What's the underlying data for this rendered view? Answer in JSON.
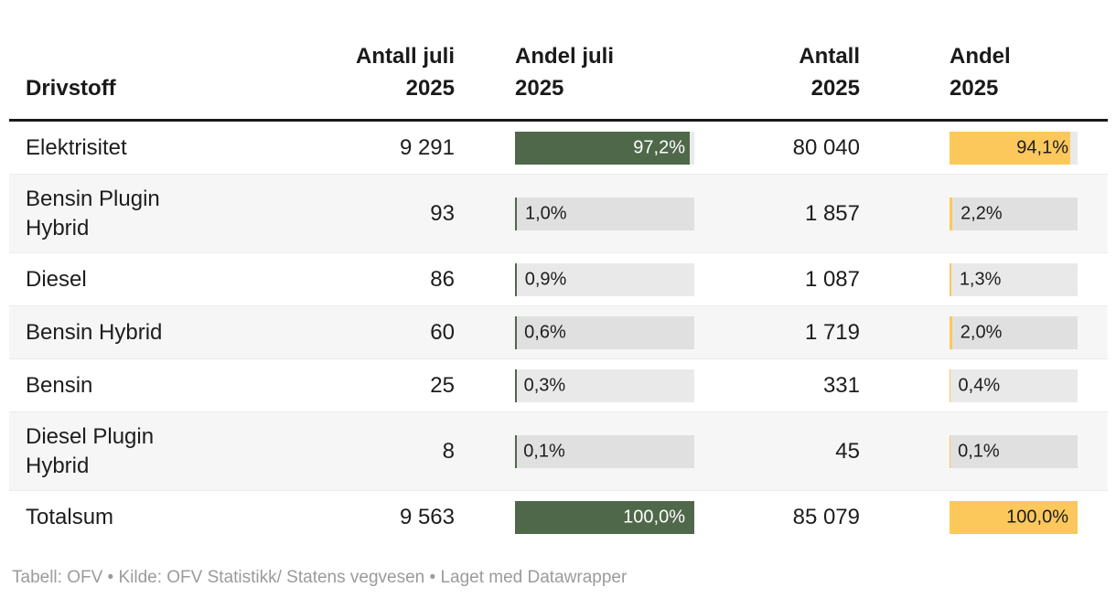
{
  "table": {
    "columns": [
      {
        "label": "Drivstoff"
      },
      {
        "label": "Antall juli\n2025"
      },
      {
        "label": "Andel juli\n2025"
      },
      {
        "label": "Antall\n2025"
      },
      {
        "label": "Andel\n2025"
      }
    ],
    "rows": [
      {
        "label": "Elektrisitet",
        "antall_juli": "9 291",
        "andel_juli": {
          "pct": 97.2,
          "label": "97,2%",
          "inside": true
        },
        "antall_2025": "80 040",
        "andel_2025": {
          "pct": 94.1,
          "label": "94,1%",
          "inside": true
        }
      },
      {
        "label": "Bensin Plugin Hybrid",
        "antall_juli": "93",
        "andel_juli": {
          "pct": 1.0,
          "label": "1,0%",
          "inside": false
        },
        "antall_2025": "1 857",
        "andel_2025": {
          "pct": 2.2,
          "label": "2,2%",
          "inside": false
        }
      },
      {
        "label": "Diesel",
        "antall_juli": "86",
        "andel_juli": {
          "pct": 0.9,
          "label": "0,9%",
          "inside": false
        },
        "antall_2025": "1 087",
        "andel_2025": {
          "pct": 1.3,
          "label": "1,3%",
          "inside": false
        }
      },
      {
        "label": "Bensin Hybrid",
        "antall_juli": "60",
        "andel_juli": {
          "pct": 0.6,
          "label": "0,6%",
          "inside": false
        },
        "antall_2025": "1 719",
        "andel_2025": {
          "pct": 2.0,
          "label": "2,0%",
          "inside": false
        }
      },
      {
        "label": "Bensin",
        "antall_juli": "25",
        "andel_juli": {
          "pct": 0.3,
          "label": "0,3%",
          "inside": false
        },
        "antall_2025": "331",
        "andel_2025": {
          "pct": 0.4,
          "label": "0,4%",
          "inside": false
        }
      },
      {
        "label": "Diesel Plugin Hybrid",
        "antall_juli": "8",
        "andel_juli": {
          "pct": 0.1,
          "label": "0,1%",
          "inside": false
        },
        "antall_2025": "45",
        "andel_2025": {
          "pct": 0.1,
          "label": "0,1%",
          "inside": false
        }
      },
      {
        "label": "Totalsum",
        "antall_juli": "9 563",
        "andel_juli": {
          "pct": 100.0,
          "label": "100,0%",
          "inside": true
        },
        "antall_2025": "85 079",
        "andel_2025": {
          "pct": 100.0,
          "label": "100,0%",
          "inside": true
        }
      }
    ]
  },
  "footer": {
    "text": "Tabell: OFV • Kilde: OFV Statistikk/ Statens vegvesen • Laget med Datawrapper"
  },
  "colors": {
    "bar_green": "#4f684a",
    "bar_yellow": "#fcc85c",
    "bar_track": "#e8e8e8",
    "row_alt": "#f6f6f6",
    "header_rule": "#1a1a1a",
    "text": "#1d1d1d",
    "footer_text": "#9b9b9b"
  },
  "chart_data": {
    "type": "table",
    "title": "",
    "columns": [
      "Drivstoff",
      "Antall juli 2025",
      "Andel juli 2025 (%)",
      "Antall 2025",
      "Andel 2025 (%)"
    ],
    "rows": [
      [
        "Elektrisitet",
        9291,
        97.2,
        80040,
        94.1
      ],
      [
        "Bensin Plugin Hybrid",
        93,
        1.0,
        1857,
        2.2
      ],
      [
        "Diesel",
        86,
        0.9,
        1087,
        1.3
      ],
      [
        "Bensin Hybrid",
        60,
        0.6,
        1719,
        2.0
      ],
      [
        "Bensin",
        25,
        0.3,
        331,
        0.4
      ],
      [
        "Diesel Plugin Hybrid",
        8,
        0.1,
        45,
        0.1
      ],
      [
        "Totalsum",
        9563,
        100.0,
        85079,
        100.0
      ]
    ],
    "bar_columns": {
      "Andel juli 2025 (%)": {
        "color": "#4f684a",
        "scale_max": 100
      },
      "Andel 2025 (%)": {
        "color": "#fcc85c",
        "scale_max": 100
      }
    },
    "notes": "Datawrapper-style table with in-cell horizontal bars; green bars = share July 2025, yellow bars = share 2025"
  }
}
